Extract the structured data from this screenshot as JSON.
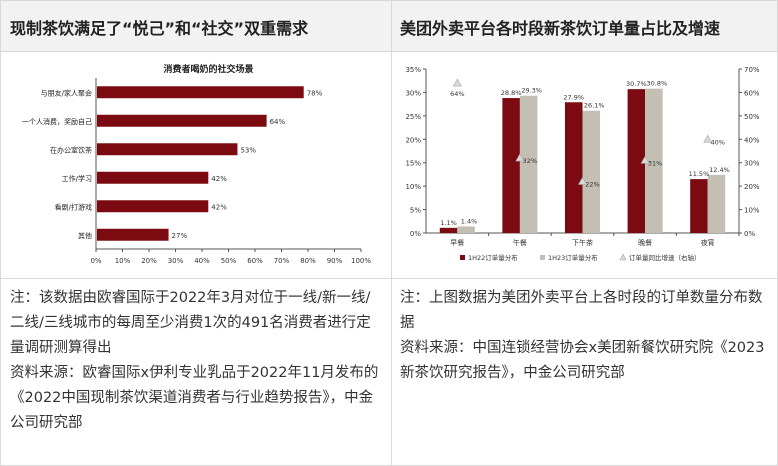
{
  "left": {
    "header": "现制茶饮满足了“悦己”和“社交”双重需求",
    "note": "注：该数据由欧睿国际于2022年3月对位于一线/新一线/二线/三线城市的每周至少消费1次的491名消费者进行定量调研测算得出",
    "source": "资料来源：欧睿国际x伊利专业乳品于2022年11月发布的《2022中国现制茶饮渠道消费者与行业趋势报告》，中金公司研究部"
  },
  "right": {
    "header": "美团外卖平台各时段新茶饮订单量占比及增速",
    "note": "注：上图数据为美团外卖平台上各时段的订单数量分布数据",
    "source": "资料来源：中国连锁经营协会x美团新餐饮研究院《2023新茶饮研究报告》，中金公司研究部"
  },
  "chart_data": [
    {
      "type": "bar",
      "orientation": "horizontal",
      "title": "消费者喝奶的社交场景",
      "categories": [
        "与朋友/家人聚会",
        "一个人消费，奖励自己",
        "在办公室饮茶",
        "工作/学习",
        "看剧/打游戏",
        "其他"
      ],
      "values": [
        78,
        64,
        53,
        42,
        42,
        27
      ],
      "value_labels": [
        "78%",
        "64%",
        "53%",
        "42%",
        "42%",
        "27%"
      ],
      "xlim": [
        0,
        100
      ],
      "x_ticks": [
        "0%",
        "10%",
        "20%",
        "30%",
        "40%",
        "50%",
        "60%",
        "70%",
        "80%",
        "90%",
        "100%"
      ],
      "colors": {
        "bar": "#7b0b10"
      }
    },
    {
      "type": "bar",
      "categories": [
        "早餐",
        "午餐",
        "下午茶",
        "晚餐",
        "夜宵"
      ],
      "series": [
        {
          "name": "1H22订单量分布",
          "values": [
            1.1,
            28.8,
            27.9,
            30.7,
            11.5
          ],
          "labels": [
            "1.1%",
            "28.8%",
            "27.9%",
            "30.7%",
            "11.5%"
          ],
          "color": "#7b0b10"
        },
        {
          "name": "1H23订单量分布",
          "values": [
            1.4,
            29.3,
            26.1,
            30.8,
            12.4
          ],
          "labels": [
            "1.4%",
            "29.3%",
            "26.1%",
            "30.8%",
            "12.4%"
          ],
          "color": "#c3bfb3"
        },
        {
          "name": "订单量同比增速（右轴）",
          "type": "scatter",
          "axis": "right",
          "values": [
            64,
            32,
            22,
            31,
            40
          ],
          "labels": [
            "64%",
            "32%",
            "22%",
            "31%",
            "40%"
          ],
          "color": "#d8d8d8"
        }
      ],
      "ylim_left": [
        0,
        35
      ],
      "ylim_right": [
        0,
        70
      ],
      "y_ticks_left": [
        "0%",
        "5%",
        "10%",
        "15%",
        "20%",
        "25%",
        "30%",
        "35%"
      ],
      "y_ticks_right": [
        "0%",
        "10%",
        "20%",
        "30%",
        "40%",
        "50%",
        "60%",
        "70%"
      ],
      "legend": "bottom"
    }
  ]
}
